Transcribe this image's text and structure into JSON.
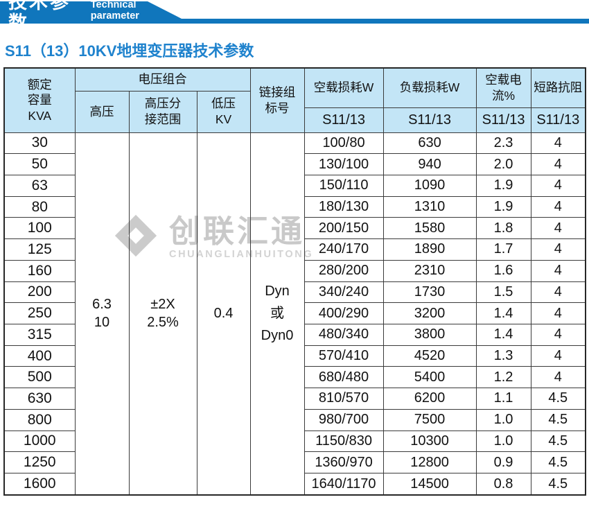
{
  "banner": {
    "title": "技术参数",
    "subtitle_en": "Technical parameter",
    "color": "#1076bc"
  },
  "page_title": "S11（13）10KV地埋变压器技术参数",
  "watermark": {
    "cn": "创联汇通",
    "en": "CHUANGLIANHUITONG"
  },
  "table": {
    "header": {
      "capacity": "额定\n容量\nKVA",
      "voltage_group": "电压组合",
      "hv": "高压",
      "hv_tap": "高压分\n接范围",
      "lv": "低压\nKV",
      "link_group": "链接组\n标号",
      "no_load_loss": "空载损耗W",
      "load_loss": "负载损耗W",
      "no_load_current": "空载电流%",
      "impedance": "短路抗阻",
      "model_no_load_loss": "S11/13",
      "model_load_loss": "S11/13",
      "model_no_load_current": "S11/13",
      "model_impedance": "S11/13"
    },
    "merged": {
      "hv": "6.3\n10",
      "tap": "±2X\n2.5%",
      "lv": "0.4",
      "link": "Dyn\n或\nDyn0"
    },
    "rows": [
      {
        "kva": "30",
        "no_load_loss": "100/80",
        "load_loss": "630",
        "no_load_current": "2.3",
        "impedance": "4"
      },
      {
        "kva": "50",
        "no_load_loss": "130/100",
        "load_loss": "940",
        "no_load_current": "2.0",
        "impedance": "4"
      },
      {
        "kva": "63",
        "no_load_loss": "150/110",
        "load_loss": "1090",
        "no_load_current": "1.9",
        "impedance": "4"
      },
      {
        "kva": "80",
        "no_load_loss": "180/130",
        "load_loss": "1310",
        "no_load_current": "1.9",
        "impedance": "4"
      },
      {
        "kva": "100",
        "no_load_loss": "200/150",
        "load_loss": "1580",
        "no_load_current": "1.8",
        "impedance": "4"
      },
      {
        "kva": "125",
        "no_load_loss": "240/170",
        "load_loss": "1890",
        "no_load_current": "1.7",
        "impedance": "4"
      },
      {
        "kva": "160",
        "no_load_loss": "280/200",
        "load_loss": "2310",
        "no_load_current": "1.6",
        "impedance": "4"
      },
      {
        "kva": "200",
        "no_load_loss": "340/240",
        "load_loss": "1730",
        "no_load_current": "1.5",
        "impedance": "4"
      },
      {
        "kva": "250",
        "no_load_loss": "400/290",
        "load_loss": "3200",
        "no_load_current": "1.4",
        "impedance": "4"
      },
      {
        "kva": "315",
        "no_load_loss": "480/340",
        "load_loss": "3800",
        "no_load_current": "1.4",
        "impedance": "4"
      },
      {
        "kva": "400",
        "no_load_loss": "570/410",
        "load_loss": "4520",
        "no_load_current": "1.3",
        "impedance": "4"
      },
      {
        "kva": "500",
        "no_load_loss": "680/480",
        "load_loss": "5400",
        "no_load_current": "1.2",
        "impedance": "4"
      },
      {
        "kva": "630",
        "no_load_loss": "810/570",
        "load_loss": "6200",
        "no_load_current": "1.1",
        "impedance": "4.5"
      },
      {
        "kva": "800",
        "no_load_loss": "980/700",
        "load_loss": "7500",
        "no_load_current": "1.0",
        "impedance": "4.5"
      },
      {
        "kva": "1000",
        "no_load_loss": "1150/830",
        "load_loss": "10300",
        "no_load_current": "1.0",
        "impedance": "4.5"
      },
      {
        "kva": "1250",
        "no_load_loss": "1360/970",
        "load_loss": "12800",
        "no_load_current": "0.9",
        "impedance": "4.5"
      },
      {
        "kva": "1600",
        "no_load_loss": "1640/1170",
        "load_loss": "14500",
        "no_load_current": "0.8",
        "impedance": "4.5"
      }
    ]
  }
}
